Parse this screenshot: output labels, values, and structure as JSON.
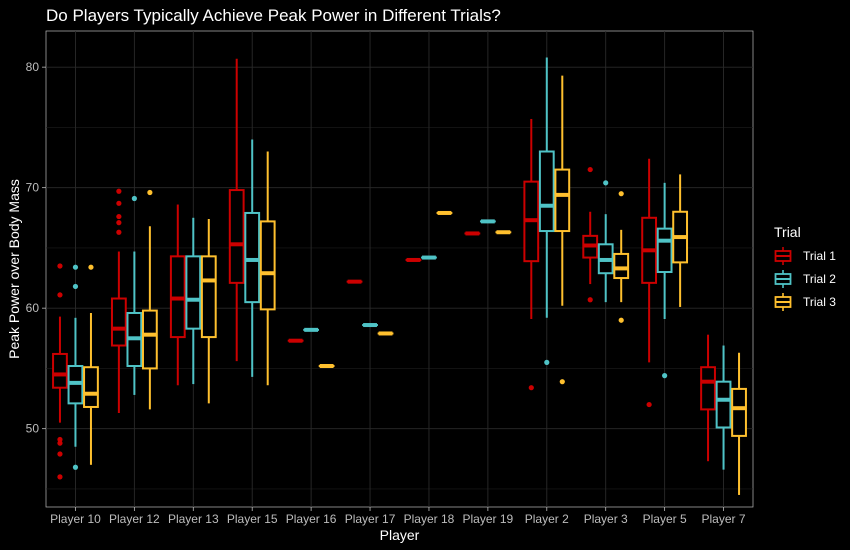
{
  "chart_data": {
    "type": "boxplot",
    "title": "Do Players Typically Achieve Peak Power in Different Trials?",
    "xlabel": "Player",
    "ylabel": "Peak Power over Body Mass",
    "ylim": [
      43.5,
      83
    ],
    "yticks": [
      50,
      60,
      70,
      80
    ],
    "grid": true,
    "legend": {
      "title": "Trial",
      "position": "right"
    },
    "categories": [
      "Player 10",
      "Player 12",
      "Player 13",
      "Player 15",
      "Player 16",
      "Player 17",
      "Player 18",
      "Player 19",
      "Player 2",
      "Player 3",
      "Player 5",
      "Player 7"
    ],
    "series": [
      {
        "name": "Trial 1",
        "color": "#cc0000",
        "boxes": [
          {
            "min": 50.5,
            "q1": 53.4,
            "median": 54.5,
            "q3": 56.2,
            "max": 59.3,
            "outliers": [
              46.0,
              47.9,
              48.8,
              49.1,
              61.1,
              63.5
            ]
          },
          {
            "min": 51.3,
            "q1": 56.9,
            "median": 58.3,
            "q3": 60.8,
            "max": 64.7,
            "outliers": [
              66.3,
              67.1,
              67.6,
              68.7,
              69.7
            ]
          },
          {
            "min": 53.6,
            "q1": 57.6,
            "median": 60.8,
            "q3": 64.3,
            "max": 68.6,
            "outliers": []
          },
          {
            "min": 55.6,
            "q1": 62.1,
            "median": 65.3,
            "q3": 69.8,
            "max": 80.7,
            "outliers": []
          },
          {
            "min": 57.3,
            "q1": 57.3,
            "median": 57.3,
            "q3": 57.3,
            "max": 57.3,
            "outliers": []
          },
          {
            "min": 62.2,
            "q1": 62.2,
            "median": 62.2,
            "q3": 62.2,
            "max": 62.2,
            "outliers": []
          },
          {
            "min": 64.0,
            "q1": 64.0,
            "median": 64.0,
            "q3": 64.0,
            "max": 64.0,
            "outliers": []
          },
          {
            "min": 66.2,
            "q1": 66.2,
            "median": 66.2,
            "q3": 66.2,
            "max": 66.2,
            "outliers": []
          },
          {
            "min": 59.1,
            "q1": 63.9,
            "median": 67.3,
            "q3": 70.5,
            "max": 75.7,
            "outliers": [
              53.4
            ]
          },
          {
            "min": 62.0,
            "q1": 64.2,
            "median": 65.2,
            "q3": 66.0,
            "max": 68.0,
            "outliers": [
              60.7,
              71.5
            ]
          },
          {
            "min": 55.5,
            "q1": 62.1,
            "median": 64.8,
            "q3": 67.5,
            "max": 72.4,
            "outliers": [
              52.0
            ]
          },
          {
            "min": 47.3,
            "q1": 51.6,
            "median": 53.9,
            "q3": 55.1,
            "max": 57.8,
            "outliers": []
          }
        ]
      },
      {
        "name": "Trial 2",
        "color": "#4fc3c6",
        "boxes": [
          {
            "min": 48.5,
            "q1": 52.1,
            "median": 53.8,
            "q3": 55.2,
            "max": 59.2,
            "outliers": [
              46.8,
              61.8,
              63.4
            ]
          },
          {
            "min": 52.8,
            "q1": 55.2,
            "median": 57.5,
            "q3": 59.6,
            "max": 64.7,
            "outliers": [
              69.1
            ]
          },
          {
            "min": 53.7,
            "q1": 58.3,
            "median": 60.7,
            "q3": 64.3,
            "max": 67.5,
            "outliers": []
          },
          {
            "min": 54.3,
            "q1": 60.5,
            "median": 64.0,
            "q3": 67.9,
            "max": 74.0,
            "outliers": []
          },
          {
            "min": 58.2,
            "q1": 58.2,
            "median": 58.2,
            "q3": 58.2,
            "max": 58.2,
            "outliers": []
          },
          {
            "min": 58.6,
            "q1": 58.6,
            "median": 58.6,
            "q3": 58.6,
            "max": 58.6,
            "outliers": []
          },
          {
            "min": 64.2,
            "q1": 64.2,
            "median": 64.2,
            "q3": 64.2,
            "max": 64.2,
            "outliers": []
          },
          {
            "min": 67.2,
            "q1": 67.2,
            "median": 67.2,
            "q3": 67.2,
            "max": 67.2,
            "outliers": []
          },
          {
            "min": 59.2,
            "q1": 66.4,
            "median": 68.5,
            "q3": 73.0,
            "max": 80.8,
            "outliers": [
              55.5
            ]
          },
          {
            "min": 60.5,
            "q1": 62.9,
            "median": 64.0,
            "q3": 65.3,
            "max": 67.8,
            "outliers": [
              70.4
            ]
          },
          {
            "min": 59.1,
            "q1": 63.0,
            "median": 65.6,
            "q3": 66.6,
            "max": 70.4,
            "outliers": [
              54.4
            ]
          },
          {
            "min": 46.6,
            "q1": 50.1,
            "median": 52.4,
            "q3": 53.9,
            "max": 56.9,
            "outliers": []
          }
        ]
      },
      {
        "name": "Trial 3",
        "color": "#ffc02e",
        "boxes": [
          {
            "min": 47.0,
            "q1": 51.8,
            "median": 52.9,
            "q3": 55.1,
            "max": 59.6,
            "outliers": [
              63.4
            ]
          },
          {
            "min": 51.6,
            "q1": 55.0,
            "median": 57.8,
            "q3": 59.8,
            "max": 66.8,
            "outliers": [
              69.6
            ]
          },
          {
            "min": 52.1,
            "q1": 57.6,
            "median": 62.3,
            "q3": 64.3,
            "max": 67.4,
            "outliers": []
          },
          {
            "min": 53.6,
            "q1": 59.9,
            "median": 62.9,
            "q3": 67.2,
            "max": 73.0,
            "outliers": []
          },
          {
            "min": 55.2,
            "q1": 55.2,
            "median": 55.2,
            "q3": 55.2,
            "max": 55.2,
            "outliers": []
          },
          {
            "min": 57.9,
            "q1": 57.9,
            "median": 57.9,
            "q3": 57.9,
            "max": 57.9,
            "outliers": []
          },
          {
            "min": 67.9,
            "q1": 67.9,
            "median": 67.9,
            "q3": 67.9,
            "max": 67.9,
            "outliers": []
          },
          {
            "min": 66.3,
            "q1": 66.3,
            "median": 66.3,
            "q3": 66.3,
            "max": 66.3,
            "outliers": []
          },
          {
            "min": 60.2,
            "q1": 66.4,
            "median": 69.4,
            "q3": 71.5,
            "max": 79.3,
            "outliers": [
              53.9
            ]
          },
          {
            "min": 60.5,
            "q1": 62.5,
            "median": 63.3,
            "q3": 64.5,
            "max": 66.5,
            "outliers": [
              59.0,
              69.5
            ]
          },
          {
            "min": 60.1,
            "q1": 63.8,
            "median": 65.9,
            "q3": 68.0,
            "max": 71.1,
            "outliers": []
          },
          {
            "min": 44.5,
            "q1": 49.4,
            "median": 51.7,
            "q3": 53.3,
            "max": 56.3,
            "outliers": []
          }
        ]
      }
    ]
  }
}
